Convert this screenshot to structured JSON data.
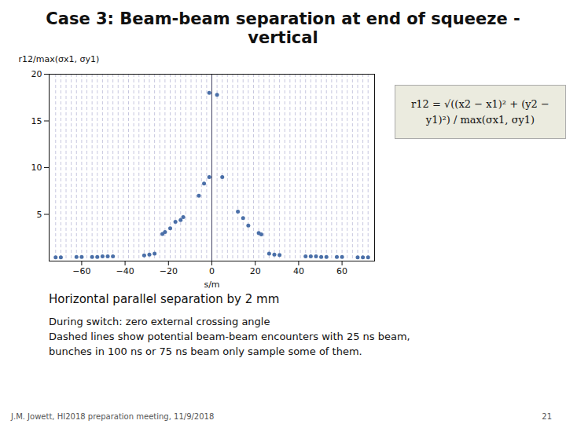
{
  "chart_data": {
    "type": "scatter",
    "title": "Case 3: Beam-beam separation at end of squeeze - vertical",
    "subtitle": "Horizontal parallel separation by 2 mm",
    "xlabel": "s/m",
    "ylabel": "r12/max(σx1, σy1)",
    "formula": "r12 = √((x2 − x1)² + (y2 − y1)²) / max(σx1, σy1)",
    "annotations": [
      "During switch:  zero external crossing angle",
      "Dashed lines show potential beam-beam encounters with 25 ns beam,",
      "bunches in 100 ns or 75 ns beam only sample some of them."
    ],
    "footer_left": "J.M. Jowett, HI2018 preparation meeting, 11/9/2018",
    "footer_right": "21",
    "xlim": [
      -75,
      75
    ],
    "ylim": [
      0,
      20
    ],
    "xticks": [
      -60,
      -40,
      -20,
      0,
      20,
      40,
      60
    ],
    "yticks": [
      5,
      10,
      15,
      20
    ],
    "grid": false,
    "vlines": [
      {
        "line_style": "dashed",
        "x": [
          -72,
          -69.6,
          -67.2,
          -64.8,
          -62.4,
          -60,
          -57.6,
          -55.2,
          -52.8,
          -50.4,
          -48,
          -45.6,
          -43.2,
          -40.8,
          -38.4,
          -36,
          -33.6,
          -31.2,
          -28.8,
          -26.4,
          -24,
          -21.6,
          -19.2,
          -16.8,
          -14.4,
          -12,
          -9.6,
          -7.2,
          -4.8,
          -2.4,
          2.4,
          4.8,
          7.2,
          9.6,
          12,
          14.4,
          16.8,
          19.2,
          21.6,
          24,
          26.4,
          28.8,
          31.2,
          33.6,
          36,
          38.4,
          40.8,
          43.2,
          45.6,
          48,
          50.4,
          52.8,
          55.2,
          57.6,
          60,
          62.4,
          64.8,
          67.2,
          69.6,
          72
        ]
      },
      {
        "line_style": "solid",
        "x": [
          0
        ]
      }
    ],
    "color": "#4a6fa8",
    "x": [
      -1.2,
      2.4,
      -1.2,
      4.8,
      -3.6,
      -6.0,
      12.0,
      -13.2,
      14.4,
      -14.4,
      -16.8,
      16.8,
      -19.2,
      -21.6,
      21.6,
      -22.8,
      22.8,
      -26.4,
      -28.8,
      -31.2,
      26.4,
      28.8,
      31.2,
      -45.6,
      -48.0,
      -50.4,
      -52.8,
      -55.2,
      43.2,
      45.6,
      48.0,
      50.4,
      52.8,
      -60.0,
      -62.4,
      57.6,
      60.0,
      -69.6,
      -72.0,
      67.2,
      69.6,
      72.0
    ],
    "values": [
      18.0,
      17.8,
      9.0,
      9.0,
      8.3,
      7.0,
      5.3,
      4.7,
      4.6,
      4.4,
      4.2,
      3.8,
      3.5,
      3.1,
      3.0,
      2.9,
      2.85,
      0.8,
      0.7,
      0.6,
      0.8,
      0.7,
      0.65,
      0.5,
      0.5,
      0.5,
      0.45,
      0.45,
      0.5,
      0.5,
      0.5,
      0.45,
      0.45,
      0.45,
      0.45,
      0.45,
      0.45,
      0.4,
      0.4,
      0.4,
      0.4,
      0.4
    ]
  }
}
